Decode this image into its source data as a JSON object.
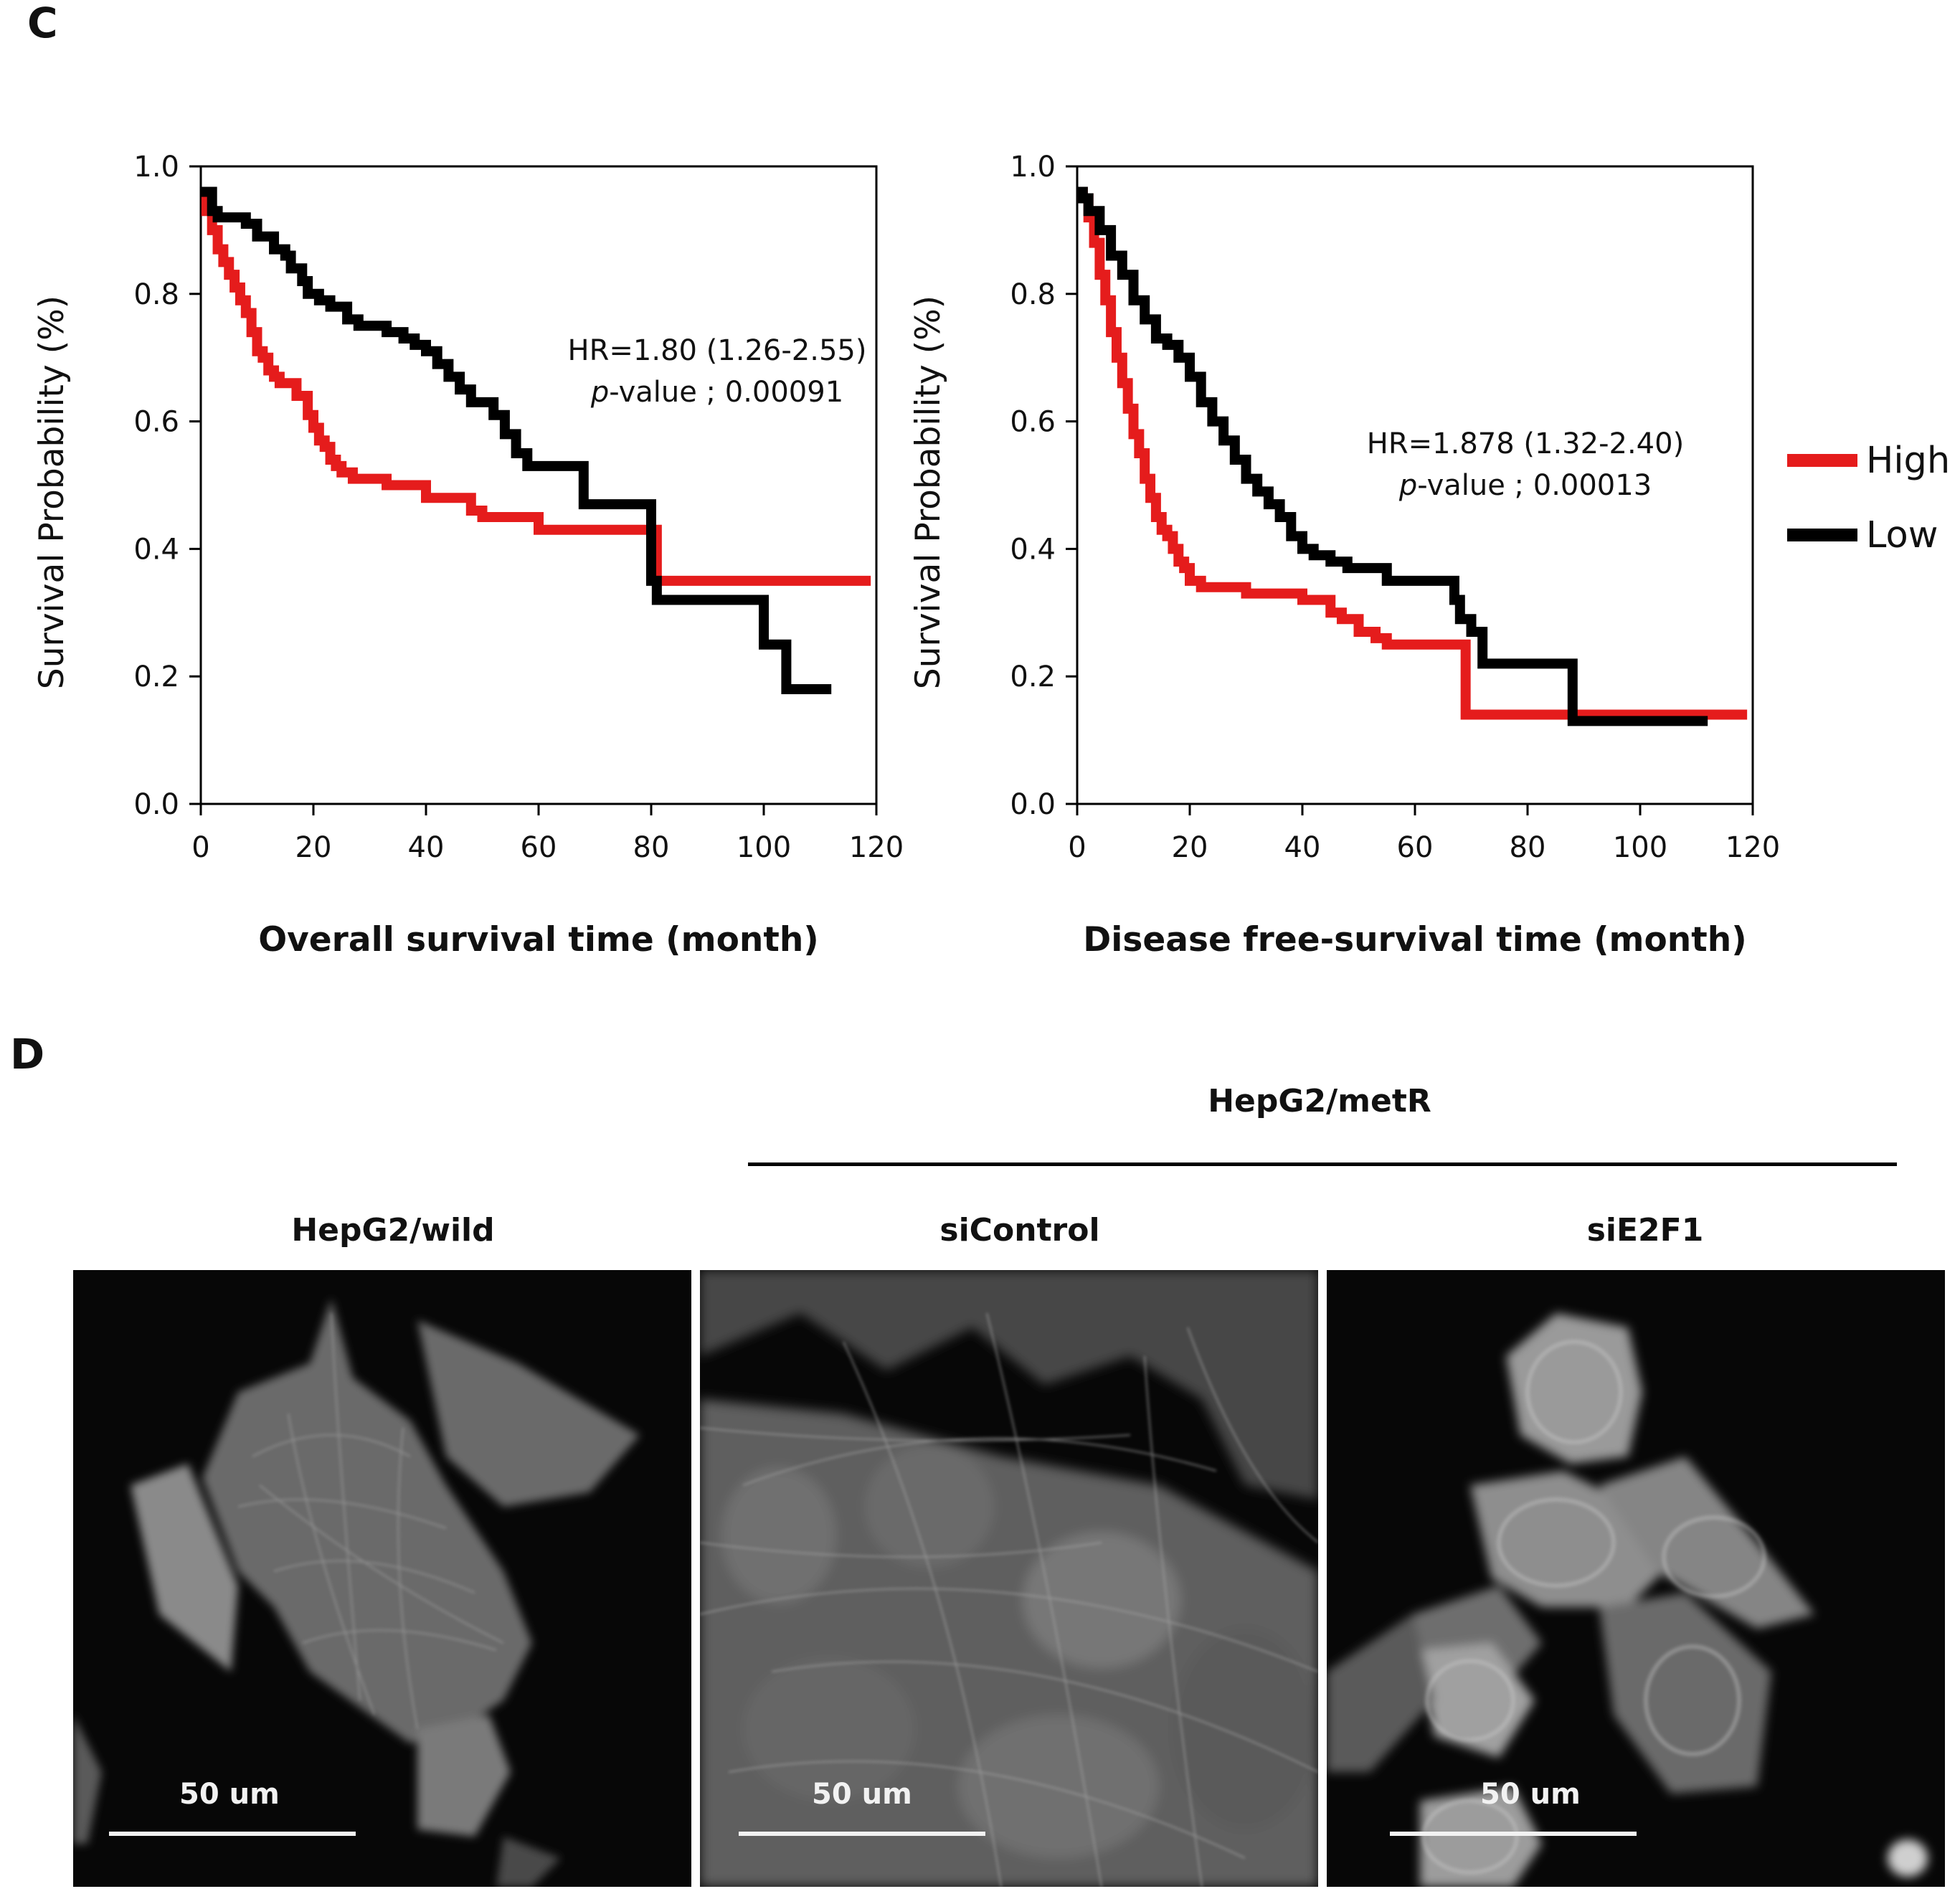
{
  "panels": {
    "c_letter": "C",
    "d_letter": "D"
  },
  "chart_data": [
    {
      "type": "line",
      "xlabel": "Overall survival time (month)",
      "ylabel": "Survival Probability (%)",
      "xlim": [
        0,
        120
      ],
      "ylim": [
        0,
        1
      ],
      "x_ticks": [
        "0",
        "20",
        "40",
        "60",
        "80",
        "100",
        "120"
      ],
      "y_ticks": [
        "0.0",
        "0.2",
        "0.4",
        "0.6",
        "0.8",
        "1.0"
      ],
      "grid": false,
      "annotation": {
        "hr": "HR=1.80 (1.26-2.55)",
        "p_italic": "p",
        "p_rest": "-value ; 0.00091"
      },
      "series": [
        {
          "name": "High",
          "color": "#e51c1c",
          "x": [
            0,
            1,
            2,
            3,
            4,
            5,
            6,
            7,
            8,
            9,
            10,
            11,
            12,
            13,
            14,
            15,
            17,
            19,
            20,
            21,
            22,
            23,
            24,
            25,
            27,
            29,
            31,
            33,
            35,
            40,
            47,
            48,
            50,
            60,
            63,
            80,
            81,
            82,
            119
          ],
          "y": [
            0.96,
            0.93,
            0.9,
            0.87,
            0.85,
            0.83,
            0.81,
            0.79,
            0.77,
            0.74,
            0.71,
            0.7,
            0.68,
            0.67,
            0.66,
            0.66,
            0.64,
            0.61,
            0.59,
            0.57,
            0.56,
            0.54,
            0.53,
            0.52,
            0.51,
            0.51,
            0.51,
            0.5,
            0.5,
            0.48,
            0.48,
            0.46,
            0.45,
            0.43,
            0.43,
            0.43,
            0.35,
            0.35,
            0.35
          ]
        },
        {
          "name": "Low",
          "color": "#000000",
          "x": [
            0,
            2,
            3,
            5,
            8,
            10,
            13,
            15,
            16,
            18,
            19,
            21,
            23,
            26,
            28,
            30,
            33,
            36,
            38,
            40,
            42,
            44,
            46,
            48,
            52,
            54,
            56,
            58,
            64,
            68,
            70,
            74,
            79,
            80,
            81,
            83,
            90,
            100,
            102,
            104,
            106,
            112
          ],
          "y": [
            0.96,
            0.93,
            0.92,
            0.92,
            0.91,
            0.89,
            0.87,
            0.86,
            0.84,
            0.82,
            0.8,
            0.79,
            0.78,
            0.76,
            0.75,
            0.75,
            0.74,
            0.73,
            0.72,
            0.71,
            0.69,
            0.67,
            0.65,
            0.63,
            0.61,
            0.58,
            0.55,
            0.53,
            0.53,
            0.47,
            0.47,
            0.47,
            0.47,
            0.35,
            0.32,
            0.32,
            0.32,
            0.25,
            0.25,
            0.18,
            0.18,
            0.18
          ]
        }
      ]
    },
    {
      "type": "line",
      "xlabel": "Disease free-survival time (month)",
      "ylabel": "Survival Probability (%)",
      "xlim": [
        0,
        120
      ],
      "ylim": [
        0,
        1
      ],
      "x_ticks": [
        "0",
        "20",
        "40",
        "60",
        "80",
        "100",
        "120"
      ],
      "y_ticks": [
        "0.0",
        "0.2",
        "0.4",
        "0.6",
        "0.8",
        "1.0"
      ],
      "grid": false,
      "annotation": {
        "hr": "HR=1.878 (1.32-2.40)",
        "p_italic": "p",
        "p_rest": "-value ; 0.00013"
      },
      "series": [
        {
          "name": "High",
          "color": "#e51c1c",
          "x": [
            0,
            1,
            2,
            3,
            4,
            5,
            6,
            7,
            8,
            9,
            10,
            11,
            12,
            13,
            14,
            15,
            16,
            17,
            18,
            19,
            20,
            22,
            25,
            30,
            35,
            40,
            45,
            47,
            50,
            53,
            55,
            60,
            68,
            69,
            70,
            75,
            119
          ],
          "y": [
            0.96,
            0.95,
            0.92,
            0.88,
            0.83,
            0.79,
            0.74,
            0.7,
            0.66,
            0.62,
            0.58,
            0.55,
            0.51,
            0.48,
            0.45,
            0.43,
            0.42,
            0.4,
            0.38,
            0.37,
            0.35,
            0.34,
            0.34,
            0.33,
            0.33,
            0.32,
            0.3,
            0.29,
            0.27,
            0.26,
            0.25,
            0.25,
            0.25,
            0.14,
            0.14,
            0.14,
            0.14
          ]
        },
        {
          "name": "Low",
          "color": "#000000",
          "x": [
            0,
            1,
            2,
            4,
            6,
            8,
            10,
            12,
            14,
            16,
            18,
            20,
            22,
            24,
            26,
            28,
            30,
            32,
            34,
            36,
            38,
            40,
            42,
            45,
            48,
            50,
            55,
            60,
            65,
            67,
            68,
            70,
            72,
            80,
            87,
            88,
            95,
            112
          ],
          "y": [
            0.96,
            0.95,
            0.93,
            0.9,
            0.86,
            0.83,
            0.79,
            0.76,
            0.73,
            0.72,
            0.7,
            0.67,
            0.63,
            0.6,
            0.57,
            0.54,
            0.51,
            0.49,
            0.47,
            0.45,
            0.42,
            0.4,
            0.39,
            0.38,
            0.37,
            0.37,
            0.35,
            0.35,
            0.35,
            0.32,
            0.29,
            0.27,
            0.22,
            0.22,
            0.22,
            0.13,
            0.13,
            0.13
          ]
        }
      ]
    }
  ],
  "legend": {
    "entries": [
      {
        "label": "High",
        "color": "#e51c1c"
      },
      {
        "label": "Low",
        "color": "#000000"
      }
    ]
  },
  "microscopy": {
    "group_header": "HepG2/metR",
    "images": [
      {
        "title": "HepG2/wild",
        "scale_label": "50 um"
      },
      {
        "title": "siControl",
        "scale_label": "50 um"
      },
      {
        "title": "siE2F1",
        "scale_label": "50 um"
      }
    ]
  }
}
